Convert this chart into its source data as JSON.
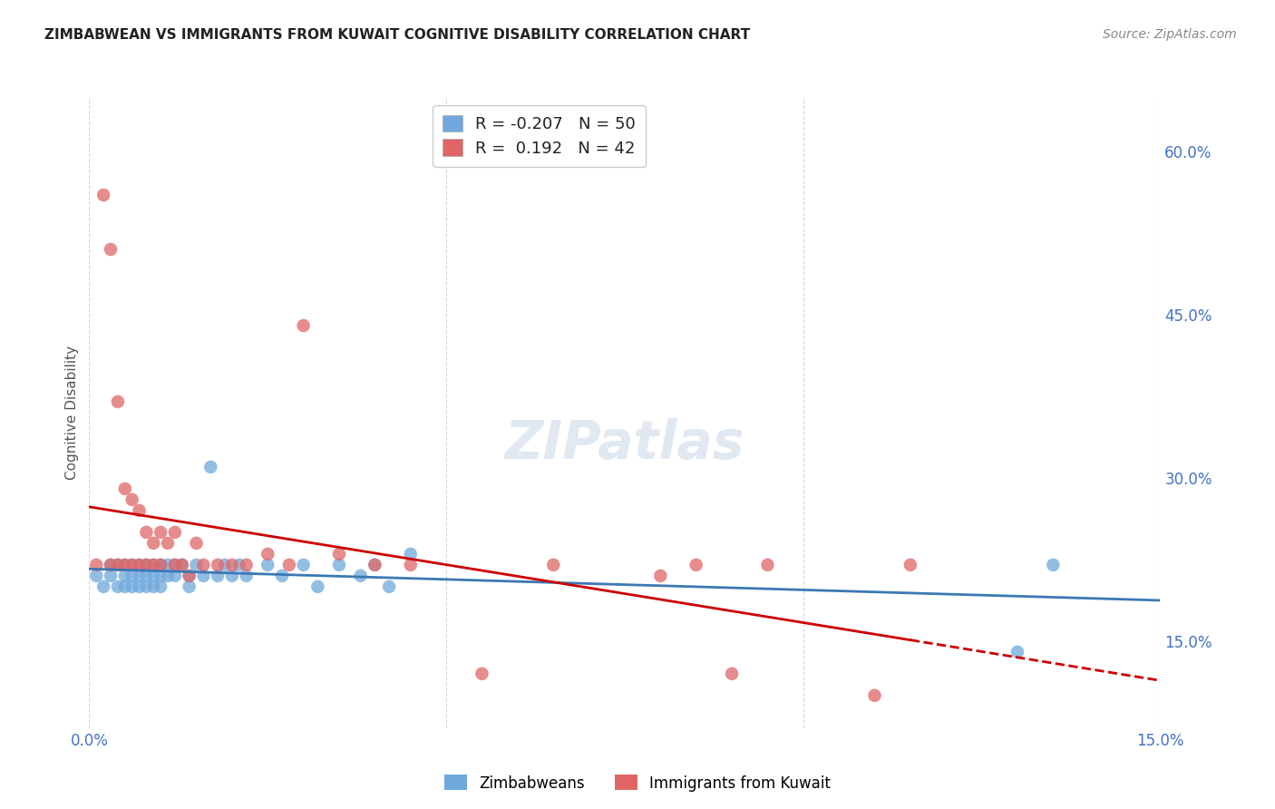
{
  "title": "ZIMBABWEAN VS IMMIGRANTS FROM KUWAIT COGNITIVE DISABILITY CORRELATION CHART",
  "source": "Source: ZipAtlas.com",
  "ylabel": "Cognitive Disability",
  "xlim": [
    0.0,
    0.15
  ],
  "ylim": [
    0.07,
    0.65
  ],
  "yticks": [
    0.15,
    0.3,
    0.45,
    0.6
  ],
  "ytick_labels": [
    "15.0%",
    "30.0%",
    "45.0%",
    "60.0%"
  ],
  "xtick_labels": [
    "0.0%",
    "",
    "",
    "15.0%"
  ],
  "blue_color": "#6fa8dc",
  "pink_color": "#e06666",
  "blue_line_color": "#3c78b5",
  "pink_line_color": "#cc0000",
  "axis_label_color": "#4472c4",
  "legend_R_blue": "-0.207",
  "legend_N_blue": "50",
  "legend_R_pink": "0.192",
  "legend_N_pink": "42",
  "legend_label_blue": "Zimbabweans",
  "legend_label_pink": "Immigrants from Kuwait",
  "blue_scatter_x": [
    0.001,
    0.002,
    0.003,
    0.003,
    0.004,
    0.004,
    0.005,
    0.005,
    0.005,
    0.006,
    0.006,
    0.006,
    0.007,
    0.007,
    0.007,
    0.008,
    0.008,
    0.008,
    0.009,
    0.009,
    0.009,
    0.01,
    0.01,
    0.01,
    0.011,
    0.011,
    0.012,
    0.012,
    0.013,
    0.014,
    0.014,
    0.015,
    0.016,
    0.017,
    0.018,
    0.019,
    0.02,
    0.021,
    0.022,
    0.025,
    0.027,
    0.03,
    0.032,
    0.035,
    0.038,
    0.04,
    0.042,
    0.045,
    0.13,
    0.135
  ],
  "blue_scatter_y": [
    0.21,
    0.2,
    0.22,
    0.21,
    0.2,
    0.22,
    0.21,
    0.22,
    0.2,
    0.22,
    0.21,
    0.2,
    0.22,
    0.21,
    0.2,
    0.22,
    0.21,
    0.2,
    0.22,
    0.21,
    0.2,
    0.22,
    0.21,
    0.2,
    0.22,
    0.21,
    0.22,
    0.21,
    0.22,
    0.21,
    0.2,
    0.22,
    0.21,
    0.31,
    0.21,
    0.22,
    0.21,
    0.22,
    0.21,
    0.22,
    0.21,
    0.22,
    0.2,
    0.22,
    0.21,
    0.22,
    0.2,
    0.23,
    0.14,
    0.22
  ],
  "pink_scatter_x": [
    0.001,
    0.002,
    0.003,
    0.003,
    0.004,
    0.004,
    0.005,
    0.005,
    0.006,
    0.006,
    0.007,
    0.007,
    0.008,
    0.008,
    0.009,
    0.009,
    0.01,
    0.01,
    0.011,
    0.012,
    0.012,
    0.013,
    0.014,
    0.015,
    0.016,
    0.018,
    0.02,
    0.022,
    0.025,
    0.028,
    0.03,
    0.035,
    0.04,
    0.045,
    0.055,
    0.065,
    0.08,
    0.085,
    0.09,
    0.095,
    0.11,
    0.115
  ],
  "pink_scatter_y": [
    0.22,
    0.56,
    0.51,
    0.22,
    0.37,
    0.22,
    0.29,
    0.22,
    0.28,
    0.22,
    0.27,
    0.22,
    0.25,
    0.22,
    0.24,
    0.22,
    0.25,
    0.22,
    0.24,
    0.25,
    0.22,
    0.22,
    0.21,
    0.24,
    0.22,
    0.22,
    0.22,
    0.22,
    0.23,
    0.22,
    0.44,
    0.23,
    0.22,
    0.22,
    0.12,
    0.22,
    0.21,
    0.22,
    0.12,
    0.22,
    0.1,
    0.22
  ]
}
